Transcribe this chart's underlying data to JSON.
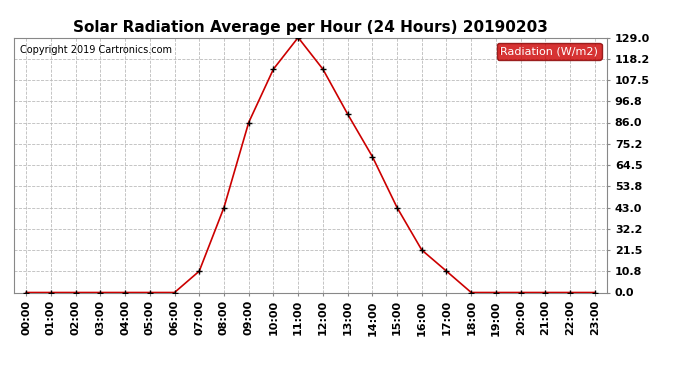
{
  "title": "Solar Radiation Average per Hour (24 Hours) 20190203",
  "copyright_text": "Copyright 2019 Cartronics.com",
  "legend_label": "Radiation (W/m2)",
  "hours": [
    "00:00",
    "01:00",
    "02:00",
    "03:00",
    "04:00",
    "05:00",
    "06:00",
    "07:00",
    "08:00",
    "09:00",
    "10:00",
    "11:00",
    "12:00",
    "13:00",
    "14:00",
    "15:00",
    "16:00",
    "17:00",
    "18:00",
    "19:00",
    "20:00",
    "21:00",
    "22:00",
    "23:00"
  ],
  "values": [
    0.0,
    0.0,
    0.0,
    0.0,
    0.0,
    0.0,
    0.0,
    10.8,
    43.0,
    86.0,
    113.0,
    129.0,
    113.0,
    90.3,
    68.8,
    43.0,
    21.5,
    10.8,
    0.0,
    0.0,
    0.0,
    0.0,
    0.0,
    0.0
  ],
  "yticks": [
    0.0,
    10.8,
    21.5,
    32.2,
    43.0,
    53.8,
    64.5,
    75.2,
    86.0,
    96.8,
    107.5,
    118.2,
    129.0
  ],
  "line_color": "#cc0000",
  "marker_color": "#000000",
  "background_color": "#ffffff",
  "grid_color": "#bbbbbb",
  "legend_bg": "#cc0000",
  "legend_text_color": "#ffffff",
  "title_fontsize": 11,
  "copyright_fontsize": 7,
  "axis_fontsize": 8,
  "ymax": 129.0,
  "ymin": 0.0
}
